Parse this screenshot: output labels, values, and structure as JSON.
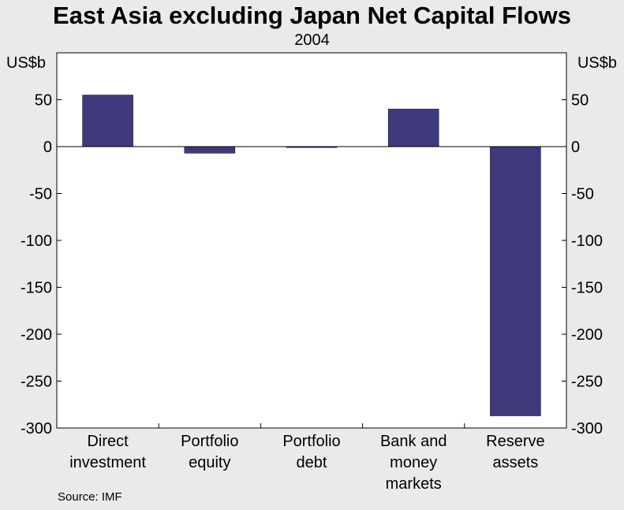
{
  "chart_data": {
    "type": "bar",
    "title": "East Asia excluding Japan Net Capital Flows",
    "subtitle": "2004",
    "categories": [
      [
        "Direct",
        "investment"
      ],
      [
        "Portfolio",
        "equity"
      ],
      [
        "Portfolio",
        "debt"
      ],
      [
        "Bank and",
        "money",
        "markets"
      ],
      [
        "Reserve",
        "assets"
      ]
    ],
    "values": [
      55,
      -7,
      -1,
      40,
      -287
    ],
    "ylim": [
      -300,
      100
    ],
    "yticks": [
      50,
      0,
      -50,
      -100,
      -150,
      -200,
      -250,
      -300
    ],
    "ylabel_left": "US$b",
    "ylabel_right": "US$b",
    "bar_color": "#3f3a7b",
    "grid": false,
    "source": "Source: IMF"
  }
}
